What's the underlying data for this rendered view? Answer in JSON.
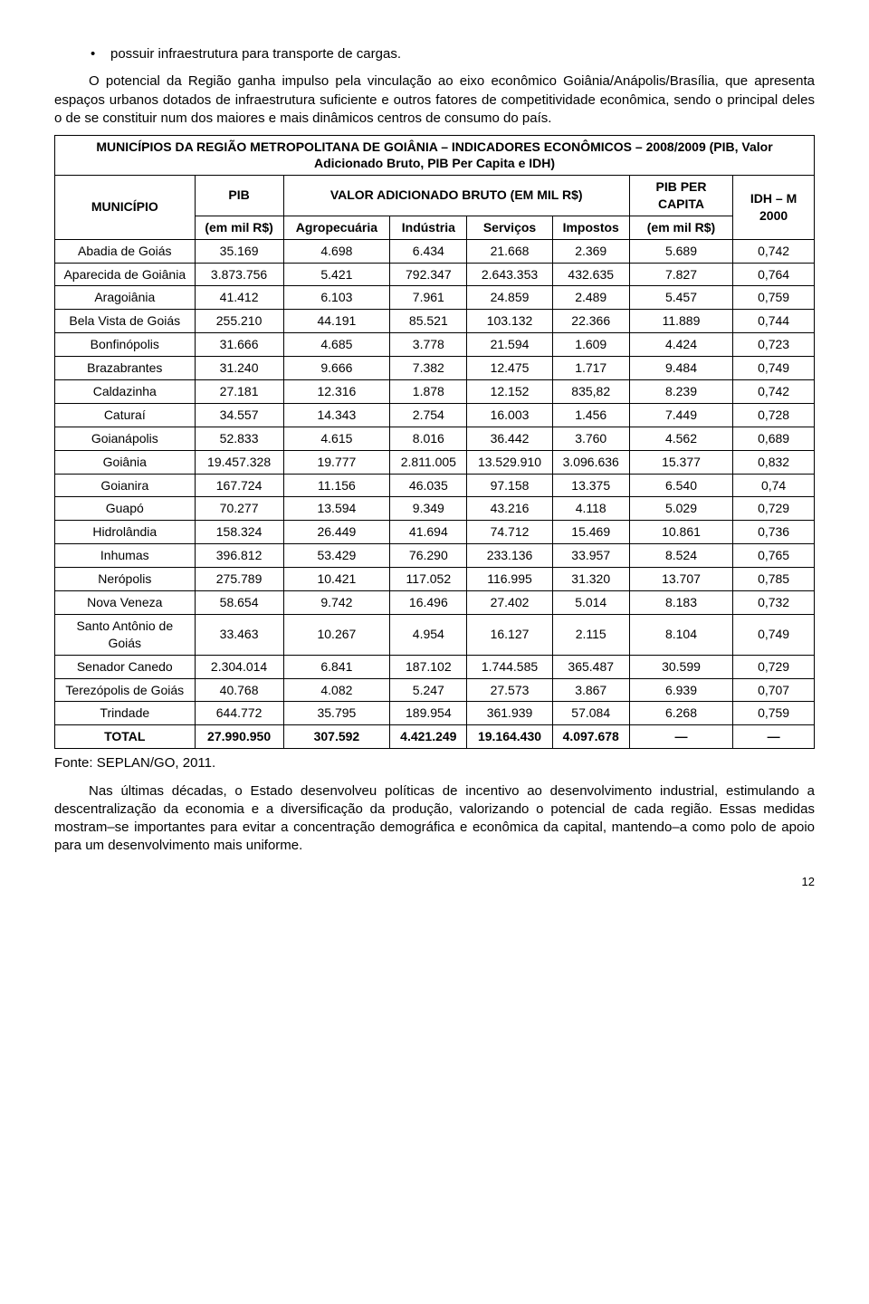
{
  "bullet": "possuir infraestrutura para transporte de cargas.",
  "para1": "O potencial da Região ganha impulso pela vinculação ao eixo econômico Goiânia/Anápolis/Brasília, que apresenta espaços urbanos dotados de infraestrutura suficiente e outros fatores de competitividade econômica, sendo o principal deles o de se constituir num dos maiores e mais dinâmicos centros de consumo do país.",
  "table": {
    "title": "MUNICÍPIOS DA REGIÃO METROPOLITANA DE GOIÂNIA – INDICADORES ECONÔMICOS – 2008/2009 (PIB, Valor Adicionado Bruto, PIB Per Capita e IDH)",
    "headers": {
      "municipio": "MUNICÍPIO",
      "pib": "PIB",
      "vab": "VALOR ADICIONADO BRUTO (EM MIL R$)",
      "pibper": "PIB PER CAPITA",
      "idh": "IDH – M 2000",
      "emmil": "(em mil R$)",
      "agro": "Agropecuária",
      "ind": "Indústria",
      "serv": "Serviços",
      "imp": "Impostos",
      "emmil2": "(em mil R$)"
    },
    "rows": [
      [
        "Abadia de Goiás",
        "35.169",
        "4.698",
        "6.434",
        "21.668",
        "2.369",
        "5.689",
        "0,742"
      ],
      [
        "Aparecida de Goiânia",
        "3.873.756",
        "5.421",
        "792.347",
        "2.643.353",
        "432.635",
        "7.827",
        "0,764"
      ],
      [
        "Aragoiânia",
        "41.412",
        "6.103",
        "7.961",
        "24.859",
        "2.489",
        "5.457",
        "0,759"
      ],
      [
        "Bela Vista de Goiás",
        "255.210",
        "44.191",
        "85.521",
        "103.132",
        "22.366",
        "11.889",
        "0,744"
      ],
      [
        "Bonfinópolis",
        "31.666",
        "4.685",
        "3.778",
        "21.594",
        "1.609",
        "4.424",
        "0,723"
      ],
      [
        "Brazabrantes",
        "31.240",
        "9.666",
        "7.382",
        "12.475",
        "1.717",
        "9.484",
        "0,749"
      ],
      [
        "Caldazinha",
        "27.181",
        "12.316",
        "1.878",
        "12.152",
        "835,82",
        "8.239",
        "0,742"
      ],
      [
        "Caturaí",
        "34.557",
        "14.343",
        "2.754",
        "16.003",
        "1.456",
        "7.449",
        "0,728"
      ],
      [
        "Goianápolis",
        "52.833",
        "4.615",
        "8.016",
        "36.442",
        "3.760",
        "4.562",
        "0,689"
      ],
      [
        "Goiânia",
        "19.457.328",
        "19.777",
        "2.811.005",
        "13.529.910",
        "3.096.636",
        "15.377",
        "0,832"
      ],
      [
        "Goianira",
        "167.724",
        "11.156",
        "46.035",
        "97.158",
        "13.375",
        "6.540",
        "0,74"
      ],
      [
        "Guapó",
        "70.277",
        "13.594",
        "9.349",
        "43.216",
        "4.118",
        "5.029",
        "0,729"
      ],
      [
        "Hidrolândia",
        "158.324",
        "26.449",
        "41.694",
        "74.712",
        "15.469",
        "10.861",
        "0,736"
      ],
      [
        "Inhumas",
        "396.812",
        "53.429",
        "76.290",
        "233.136",
        "33.957",
        "8.524",
        "0,765"
      ],
      [
        "Nerópolis",
        "275.789",
        "10.421",
        "117.052",
        "116.995",
        "31.320",
        "13.707",
        "0,785"
      ],
      [
        "Nova Veneza",
        "58.654",
        "9.742",
        "16.496",
        "27.402",
        "5.014",
        "8.183",
        "0,732"
      ],
      [
        "Santo Antônio de Goiás",
        "33.463",
        "10.267",
        "4.954",
        "16.127",
        "2.115",
        "8.104",
        "0,749"
      ],
      [
        "Senador Canedo",
        "2.304.014",
        "6.841",
        "187.102",
        "1.744.585",
        "365.487",
        "30.599",
        "0,729"
      ],
      [
        "Terezópolis de Goiás",
        "40.768",
        "4.082",
        "5.247",
        "27.573",
        "3.867",
        "6.939",
        "0,707"
      ],
      [
        "Trindade",
        "644.772",
        "35.795",
        "189.954",
        "361.939",
        "57.084",
        "6.268",
        "0,759"
      ]
    ],
    "total": [
      "TOTAL",
      "27.990.950",
      "307.592",
      "4.421.249",
      "19.164.430",
      "4.097.678",
      "—",
      "—"
    ]
  },
  "source": "Fonte: SEPLAN/GO, 2011.",
  "para2": "Nas últimas décadas, o Estado desenvolveu políticas de incentivo ao desenvolvimento industrial, estimulando a descentralização da economia e a diversificação da produção, valorizando o potencial de cada região. Essas medidas mostram–se importantes para evitar a concentração demográfica e econômica da capital, mantendo–a como polo de apoio para um desenvolvimento mais uniforme.",
  "page": "12"
}
